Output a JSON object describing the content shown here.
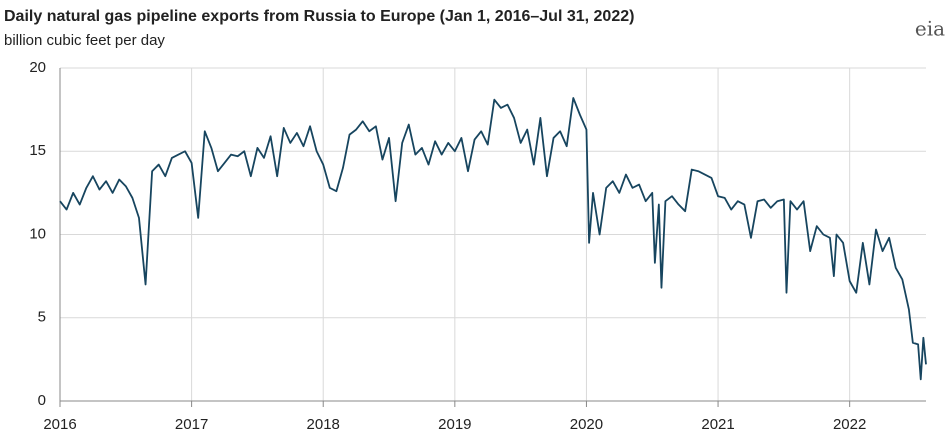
{
  "chart_data": {
    "type": "line",
    "title": "Daily natural gas pipeline exports from Russia to Europe (Jan 1, 2016–Jul 31, 2022)",
    "subtitle": "billion cubic feet per day",
    "logo": "eia",
    "grid": true,
    "xlim": [
      2016,
      2022.58
    ],
    "xticks": [
      2016,
      2017,
      2018,
      2019,
      2020,
      2021,
      2022
    ],
    "ylim": [
      0,
      20
    ],
    "yticks": [
      0,
      5,
      10,
      15,
      20
    ],
    "x": [
      2016.0,
      2016.05,
      2016.1,
      2016.15,
      2016.2,
      2016.25,
      2016.3,
      2016.35,
      2016.4,
      2016.45,
      2016.5,
      2016.55,
      2016.6,
      2016.65,
      2016.7,
      2016.75,
      2016.8,
      2016.85,
      2016.9,
      2016.95,
      2017.0,
      2017.05,
      2017.1,
      2017.15,
      2017.2,
      2017.25,
      2017.3,
      2017.35,
      2017.4,
      2017.45,
      2017.5,
      2017.55,
      2017.6,
      2017.65,
      2017.7,
      2017.75,
      2017.8,
      2017.85,
      2017.9,
      2017.95,
      2018.0,
      2018.05,
      2018.1,
      2018.15,
      2018.2,
      2018.25,
      2018.3,
      2018.35,
      2018.4,
      2018.45,
      2018.5,
      2018.55,
      2018.6,
      2018.65,
      2018.7,
      2018.75,
      2018.8,
      2018.85,
      2018.9,
      2018.95,
      2019.0,
      2019.05,
      2019.1,
      2019.15,
      2019.2,
      2019.25,
      2019.3,
      2019.35,
      2019.4,
      2019.45,
      2019.5,
      2019.55,
      2019.6,
      2019.65,
      2019.7,
      2019.75,
      2019.8,
      2019.85,
      2019.9,
      2019.95,
      2020.0,
      2020.02,
      2020.05,
      2020.1,
      2020.15,
      2020.2,
      2020.25,
      2020.3,
      2020.35,
      2020.4,
      2020.45,
      2020.5,
      2020.52,
      2020.55,
      2020.57,
      2020.6,
      2020.65,
      2020.7,
      2020.75,
      2020.8,
      2020.85,
      2020.9,
      2020.95,
      2021.0,
      2021.05,
      2021.1,
      2021.15,
      2021.2,
      2021.25,
      2021.3,
      2021.35,
      2021.4,
      2021.45,
      2021.5,
      2021.52,
      2021.55,
      2021.6,
      2021.65,
      2021.7,
      2021.75,
      2021.8,
      2021.85,
      2021.88,
      2021.9,
      2021.95,
      2022.0,
      2022.05,
      2022.1,
      2022.15,
      2022.2,
      2022.25,
      2022.3,
      2022.35,
      2022.4,
      2022.45,
      2022.48,
      2022.52,
      2022.54,
      2022.56,
      2022.58
    ],
    "series": [
      {
        "color": "#17455f",
        "values": [
          12.0,
          11.5,
          12.5,
          11.8,
          12.8,
          13.5,
          12.7,
          13.2,
          12.5,
          13.3,
          12.9,
          12.2,
          11.0,
          7.0,
          13.8,
          14.2,
          13.5,
          14.6,
          14.8,
          15.0,
          14.3,
          11.0,
          16.2,
          15.2,
          13.8,
          14.3,
          14.8,
          14.7,
          15.0,
          13.5,
          15.2,
          14.6,
          15.9,
          13.5,
          16.4,
          15.5,
          16.1,
          15.3,
          16.5,
          15.0,
          14.2,
          12.8,
          12.6,
          14.0,
          16.0,
          16.3,
          16.8,
          16.2,
          16.5,
          14.5,
          15.8,
          12.0,
          15.5,
          16.6,
          14.8,
          15.2,
          14.2,
          15.6,
          14.8,
          15.5,
          15.0,
          15.8,
          13.8,
          15.7,
          16.2,
          15.4,
          18.1,
          17.6,
          17.8,
          17.0,
          15.5,
          16.3,
          14.2,
          17.0,
          13.5,
          15.8,
          16.2,
          15.3,
          18.2,
          17.2,
          16.3,
          9.5,
          12.5,
          10.0,
          12.8,
          13.2,
          12.5,
          13.6,
          12.8,
          13.0,
          12.0,
          12.5,
          8.3,
          11.8,
          6.8,
          12.0,
          12.3,
          11.8,
          11.4,
          13.9,
          13.8,
          13.6,
          13.4,
          12.3,
          12.2,
          11.5,
          12.0,
          11.8,
          9.8,
          12.0,
          12.1,
          11.6,
          12.0,
          12.1,
          6.5,
          12.0,
          11.5,
          12.0,
          9.0,
          10.5,
          10.0,
          9.8,
          7.5,
          10.0,
          9.5,
          7.2,
          6.5,
          9.5,
          7.0,
          10.3,
          9.0,
          9.8,
          8.0,
          7.3,
          5.5,
          3.5,
          3.4,
          1.3,
          3.8,
          2.2
        ]
      }
    ]
  }
}
